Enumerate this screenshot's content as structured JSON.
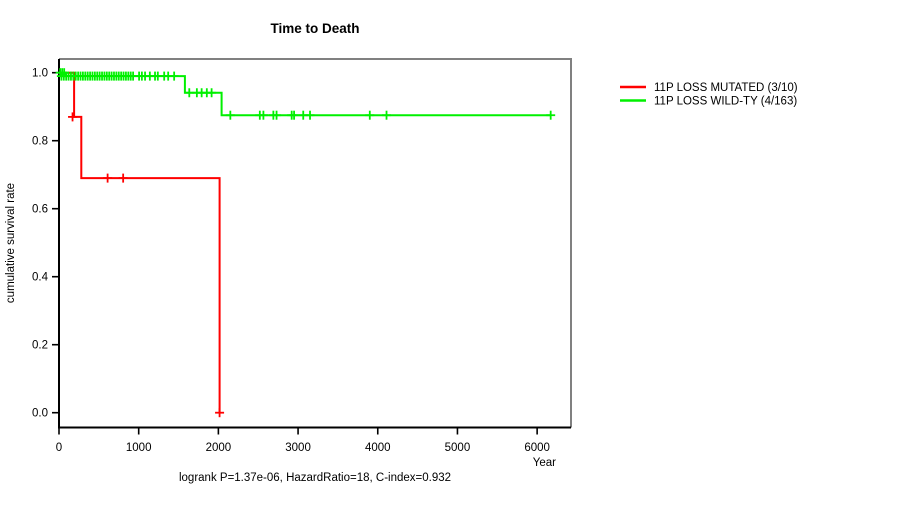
{
  "title": "Time to Death",
  "annotation": "logrank P=1.37e-06, HazardRatio=18, C-index=0.932",
  "axes": {
    "x": {
      "label": "Year",
      "ticks": [
        0,
        1000,
        2000,
        3000,
        4000,
        5000,
        6000
      ]
    },
    "y": {
      "label": "cumulative survival rate",
      "ticks": [
        "0.0",
        "0.2",
        "0.4",
        "0.6",
        "0.8",
        "1.0"
      ]
    }
  },
  "colors": {
    "mutated": "#FF0000",
    "wild_type": "#00F000",
    "box_gray": "#808080",
    "axis_black": "#000000"
  },
  "legend": {
    "items": [
      {
        "id": "mutated",
        "label": "11P LOSS MUTATED (3/10)",
        "color": "#FF0000"
      },
      {
        "id": "wild-type",
        "label": "11P LOSS WILD-TY (4/163)",
        "color": "#00F000"
      }
    ]
  },
  "chart_data": {
    "type": "line",
    "subtype": "kaplan-meier-step",
    "title": "Time to Death",
    "xlabel": "Year",
    "ylabel": "cumulative survival rate",
    "xlim": [
      0,
      6425
    ],
    "ylim": [
      0.0,
      1.0
    ],
    "x_ticks": [
      0,
      1000,
      2000,
      3000,
      4000,
      5000,
      6000
    ],
    "y_ticks": [
      0.0,
      0.2,
      0.4,
      0.6,
      0.8,
      1.0
    ],
    "grid": false,
    "legend_position": "right-outside",
    "footnote": "logrank P=1.37e-06, HazardRatio=18, C-index=0.932",
    "series": [
      {
        "id": "mutated",
        "name": "11P LOSS MUTATED (3/10)",
        "color": "#FF0000",
        "steps": [
          [
            0,
            1.0
          ],
          [
            190,
            1.0
          ],
          [
            190,
            0.87
          ],
          [
            280,
            0.87
          ],
          [
            280,
            0.69
          ],
          [
            2015,
            0.69
          ],
          [
            2015,
            0.0
          ]
        ],
        "censor_marks": [
          [
            170,
            0.87
          ],
          [
            610,
            0.69
          ],
          [
            805,
            0.69
          ],
          [
            2015,
            0.0
          ]
        ]
      },
      {
        "id": "wild-type",
        "name": "11P LOSS WILD-TY (4/163)",
        "color": "#00F000",
        "steps": [
          [
            0,
            1.0
          ],
          [
            80,
            1.0
          ],
          [
            80,
            0.99
          ],
          [
            1580,
            0.99
          ],
          [
            1580,
            0.941
          ],
          [
            2040,
            0.941
          ],
          [
            2040,
            0.875
          ],
          [
            6170,
            0.875
          ]
        ],
        "censor_marks": [
          [
            15,
            1.0
          ],
          [
            40,
            1.0
          ],
          [
            65,
            1.0
          ],
          [
            30,
            0.99
          ],
          [
            60,
            0.99
          ],
          [
            90,
            0.99
          ],
          [
            120,
            0.99
          ],
          [
            150,
            0.99
          ],
          [
            180,
            0.99
          ],
          [
            210,
            0.99
          ],
          [
            240,
            0.99
          ],
          [
            270,
            0.99
          ],
          [
            300,
            0.99
          ],
          [
            330,
            0.99
          ],
          [
            360,
            0.99
          ],
          [
            390,
            0.99
          ],
          [
            420,
            0.99
          ],
          [
            450,
            0.99
          ],
          [
            480,
            0.99
          ],
          [
            510,
            0.99
          ],
          [
            540,
            0.99
          ],
          [
            570,
            0.99
          ],
          [
            600,
            0.99
          ],
          [
            630,
            0.99
          ],
          [
            660,
            0.99
          ],
          [
            690,
            0.99
          ],
          [
            720,
            0.99
          ],
          [
            750,
            0.99
          ],
          [
            780,
            0.99
          ],
          [
            810,
            0.99
          ],
          [
            840,
            0.99
          ],
          [
            870,
            0.99
          ],
          [
            900,
            0.99
          ],
          [
            930,
            0.99
          ],
          [
            1005,
            0.99
          ],
          [
            1040,
            0.99
          ],
          [
            1080,
            0.99
          ],
          [
            1140,
            0.99
          ],
          [
            1205,
            0.99
          ],
          [
            1240,
            0.99
          ],
          [
            1320,
            0.99
          ],
          [
            1370,
            0.99
          ],
          [
            1445,
            0.99
          ],
          [
            1635,
            0.941
          ],
          [
            1730,
            0.941
          ],
          [
            1790,
            0.941
          ],
          [
            1855,
            0.941
          ],
          [
            1915,
            0.941
          ],
          [
            2150,
            0.875
          ],
          [
            2520,
            0.875
          ],
          [
            2565,
            0.875
          ],
          [
            2690,
            0.875
          ],
          [
            2730,
            0.875
          ],
          [
            2920,
            0.875
          ],
          [
            2950,
            0.875
          ],
          [
            3065,
            0.875
          ],
          [
            3150,
            0.875
          ],
          [
            3900,
            0.875
          ],
          [
            4110,
            0.875
          ],
          [
            6170,
            0.875
          ]
        ]
      }
    ]
  }
}
